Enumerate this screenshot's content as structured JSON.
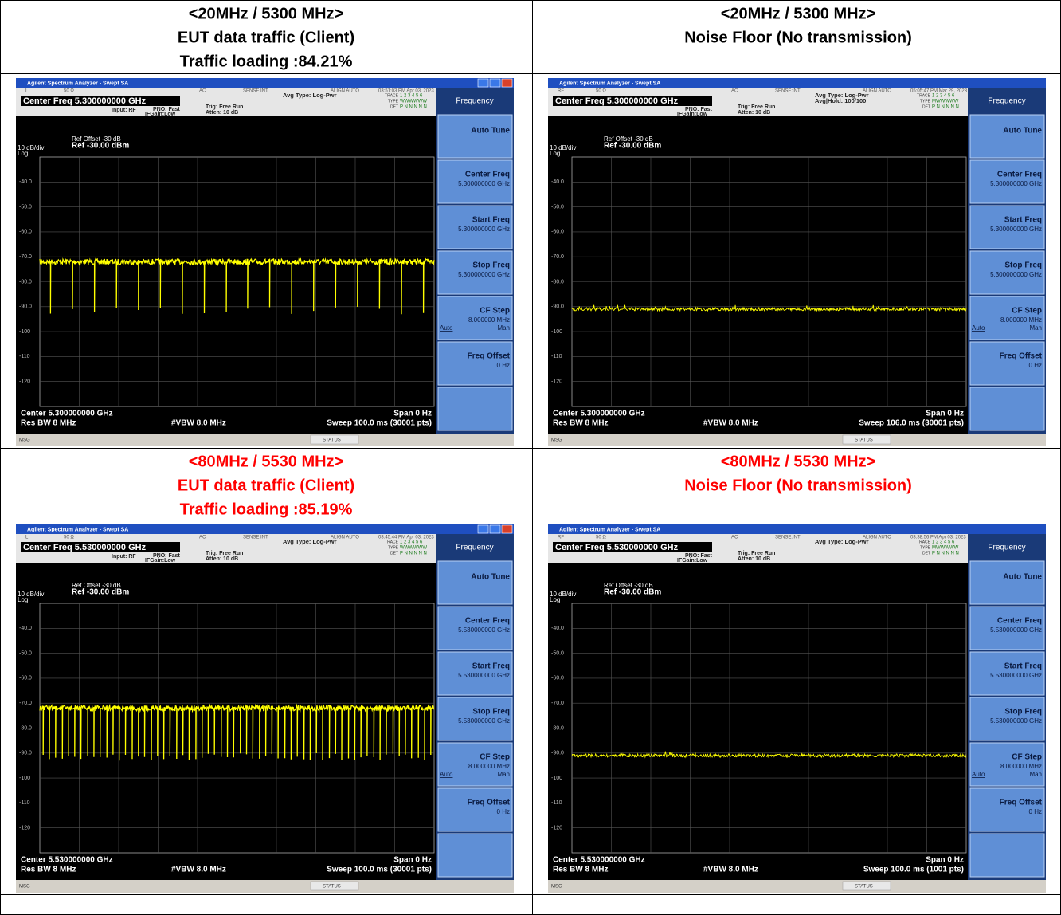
{
  "table": {
    "rows": [
      {
        "cells": [
          {
            "caption": [
              "<20MHz / 5300 MHz>",
              "EUT data traffic (Client)",
              "Traffic loading :84.21%"
            ],
            "screen": {
              "title": "Agilent Spectrum Analyzer - Swept SA",
              "status": [
                "L",
                "50 Ω",
                "AC",
                "SENSE:INT",
                "ALIGN AUTO",
                "03:51:03 PM Apr 03, 2023"
              ],
              "center_freq": "Center Freq  5.300000000 GHz",
              "settings": {
                "input": "Input: RF",
                "pno": "PNO: Fast",
                "ifgain": "IFGain:Low",
                "trig": "Trig: Free Run",
                "atten": "Atten: 10 dB"
              },
              "avg": [
                "Avg Type: Log-Pwr"
              ],
              "trace": [
                "TRACE",
                "1 2 3 4 5 6",
                "TYPE",
                "WWWWWW",
                "DET",
                "P N N N N N"
              ],
              "ref_offset": "Ref Offset -30 dB",
              "scale": "10 dB/div",
              "scale_type": "Log",
              "ref_level": "Ref -30.00 dBm",
              "y_labels": [
                "-40.0",
                "-50.0",
                "-60.0",
                "-70.0",
                "-80.0",
                "-90.0",
                "-100",
                "-110",
                "-120"
              ],
              "footer": {
                "center": "Center 5.300000000 GHz",
                "span": "Span 0 Hz",
                "rbw": "Res BW 8 MHz",
                "vbw": "#VBW 8.0 MHz",
                "sweep": "Sweep  100.0 ms (30001 pts)"
              },
              "msg": "MSG",
              "status_label": "STATUS",
              "softkeys": {
                "header": "Frequency",
                "keys": [
                  {
                    "label": "Auto Tune"
                  },
                  {
                    "label": "Center Freq",
                    "value": "5.300000000 GHz"
                  },
                  {
                    "label": "Start Freq",
                    "value": "5.300000000 GHz"
                  },
                  {
                    "label": "Stop Freq",
                    "value": "5.300000000 GHz"
                  },
                  {
                    "label": "CF Step",
                    "value": "8.000000 MHz",
                    "auto": "Auto",
                    "man": "Man"
                  },
                  {
                    "label": "Freq Offset",
                    "value": "0 Hz"
                  }
                ]
              }
            }
          },
          {
            "caption": [
              "<20MHz / 5300 MHz>",
              "Noise Floor (No transmission)"
            ],
            "screen": {
              "title": "Agilent Spectrum Analyzer - Swept SA",
              "status": [
                "RF",
                "50 Ω",
                "AC",
                "SENSE:INT",
                "ALIGN AUTO",
                "05:05:47 PM Mar 29, 2023"
              ],
              "center_freq": "Center Freq  5.300000000 GHz",
              "settings": {
                "pno": "PNO: Fast",
                "ifgain": "IFGain:Low",
                "trig": "Trig: Free Run",
                "atten": "Atten: 10 dB"
              },
              "avg": [
                "Avg Type: Log-Pwr",
                "Avg|Hold: 100/100"
              ],
              "trace": [
                "TRACE",
                "1 2 3 4 5 6",
                "TYPE",
                "MWWWWW",
                "DET",
                "P N N N N N"
              ],
              "ref_offset": "Ref Offset -30 dB",
              "scale": "10 dB/div",
              "scale_type": "Log",
              "ref_level": "Ref -30.00 dBm",
              "y_labels": [
                "-40.0",
                "-50.0",
                "-60.0",
                "-70.0",
                "-80.0",
                "-90.0",
                "-100",
                "-110",
                "-120"
              ],
              "footer": {
                "center": "Center 5.300000000 GHz",
                "span": "Span 0 Hz",
                "rbw": "Res BW 8 MHz",
                "vbw": "#VBW 8.0 MHz",
                "sweep": "Sweep  106.0 ms (30001 pts)"
              },
              "msg": "MSG",
              "status_label": "STATUS",
              "softkeys": {
                "header": "Frequency",
                "keys": [
                  {
                    "label": "Auto Tune"
                  },
                  {
                    "label": "Center Freq",
                    "value": "5.300000000 GHz"
                  },
                  {
                    "label": "Start Freq",
                    "value": "5.300000000 GHz"
                  },
                  {
                    "label": "Stop Freq",
                    "value": "5.300000000 GHz"
                  },
                  {
                    "label": "CF Step",
                    "value": "8.000000 MHz",
                    "auto": "Auto",
                    "man": "Man"
                  },
                  {
                    "label": "Freq Offset",
                    "value": "0 Hz"
                  }
                ]
              }
            }
          }
        ]
      },
      {
        "cells": [
          {
            "caption": [
              "<80MHz / 5530 MHz>",
              "EUT data traffic (Client)",
              "Traffic loading :85.19%"
            ],
            "screen": {
              "title": "Agilent Spectrum Analyzer - Swept SA",
              "status": [
                "L",
                "50 Ω",
                "AC",
                "SENSE:INT",
                "ALIGN AUTO",
                "03:45:44 PM Apr 03, 2023"
              ],
              "center_freq": "Center Freq  5.530000000 GHz",
              "settings": {
                "input": "Input: RF",
                "pno": "PNO: Fast",
                "ifgain": "IFGain:Low",
                "trig": "Trig: Free Run",
                "atten": "Atten: 10 dB"
              },
              "avg": [
                "Avg Type: Log-Pwr"
              ],
              "trace": [
                "TRACE",
                "1 2 3 4 5 6",
                "TYPE",
                "WWWWWW",
                "DET",
                "P N N N N N"
              ],
              "ref_offset": "Ref Offset -30 dB",
              "scale": "10 dB/div",
              "scale_type": "Log",
              "ref_level": "Ref -30.00 dBm",
              "y_labels": [
                "-40.0",
                "-50.0",
                "-60.0",
                "-70.0",
                "-80.0",
                "-90.0",
                "-100",
                "-110",
                "-120"
              ],
              "footer": {
                "center": "Center 5.530000000 GHz",
                "span": "Span 0 Hz",
                "rbw": "Res BW 8 MHz",
                "vbw": "#VBW 8.0 MHz",
                "sweep": "Sweep  100.0 ms (30001 pts)"
              },
              "msg": "MSG",
              "status_label": "STATUS",
              "softkeys": {
                "header": "Frequency",
                "keys": [
                  {
                    "label": "Auto Tune"
                  },
                  {
                    "label": "Center Freq",
                    "value": "5.530000000 GHz"
                  },
                  {
                    "label": "Start Freq",
                    "value": "5.530000000 GHz"
                  },
                  {
                    "label": "Stop Freq",
                    "value": "5.530000000 GHz"
                  },
                  {
                    "label": "CF Step",
                    "value": "8.000000 MHz",
                    "auto": "Auto",
                    "man": "Man"
                  },
                  {
                    "label": "Freq Offset",
                    "value": "0 Hz"
                  }
                ]
              }
            }
          },
          {
            "caption": [
              "<80MHz / 5530 MHz>",
              "Noise Floor (No transmission)"
            ],
            "screen": {
              "title": "Agilent Spectrum Analyzer - Swept SA",
              "status": [
                "RF",
                "50 Ω",
                "AC",
                "SENSE:INT",
                "ALIGN AUTO",
                "03:38:56 PM Apr 03, 2023"
              ],
              "center_freq": "Center Freq  5.530000000 GHz",
              "settings": {
                "pno": "PNO: Fast",
                "ifgain": "IFGain:Low",
                "trig": "Trig: Free Run",
                "atten": "Atten: 10 dB"
              },
              "avg": [
                "Avg Type: Log-Pwr"
              ],
              "trace": [
                "TRACE",
                "1 2 3 4 5 6",
                "TYPE",
                "MWWWWW",
                "DET",
                "P N N N N N"
              ],
              "ref_offset": "Ref Offset -30 dB",
              "scale": "10 dB/div",
              "scale_type": "Log",
              "ref_level": "Ref -30.00 dBm",
              "y_labels": [
                "-40.0",
                "-50.0",
                "-60.0",
                "-70.0",
                "-80.0",
                "-90.0",
                "-100",
                "-110",
                "-120"
              ],
              "footer": {
                "center": "Center 5.530000000 GHz",
                "span": "Span 0 Hz",
                "rbw": "Res BW 8 MHz",
                "vbw": "#VBW 8.0 MHz",
                "sweep": "Sweep  100.0 ms (1001 pts)"
              },
              "msg": "MSG",
              "status_label": "STATUS",
              "softkeys": {
                "header": "Frequency",
                "keys": [
                  {
                    "label": "Auto Tune"
                  },
                  {
                    "label": "Center Freq",
                    "value": "5.530000000 GHz"
                  },
                  {
                    "label": "Start Freq",
                    "value": "5.530000000 GHz"
                  },
                  {
                    "label": "Stop Freq",
                    "value": "5.530000000 GHz"
                  },
                  {
                    "label": "CF Step",
                    "value": "8.000000 MHz",
                    "auto": "Auto",
                    "man": "Man"
                  },
                  {
                    "label": "Freq Offset",
                    "value": "0 Hz"
                  }
                ]
              }
            }
          }
        ]
      }
    ]
  }
}
